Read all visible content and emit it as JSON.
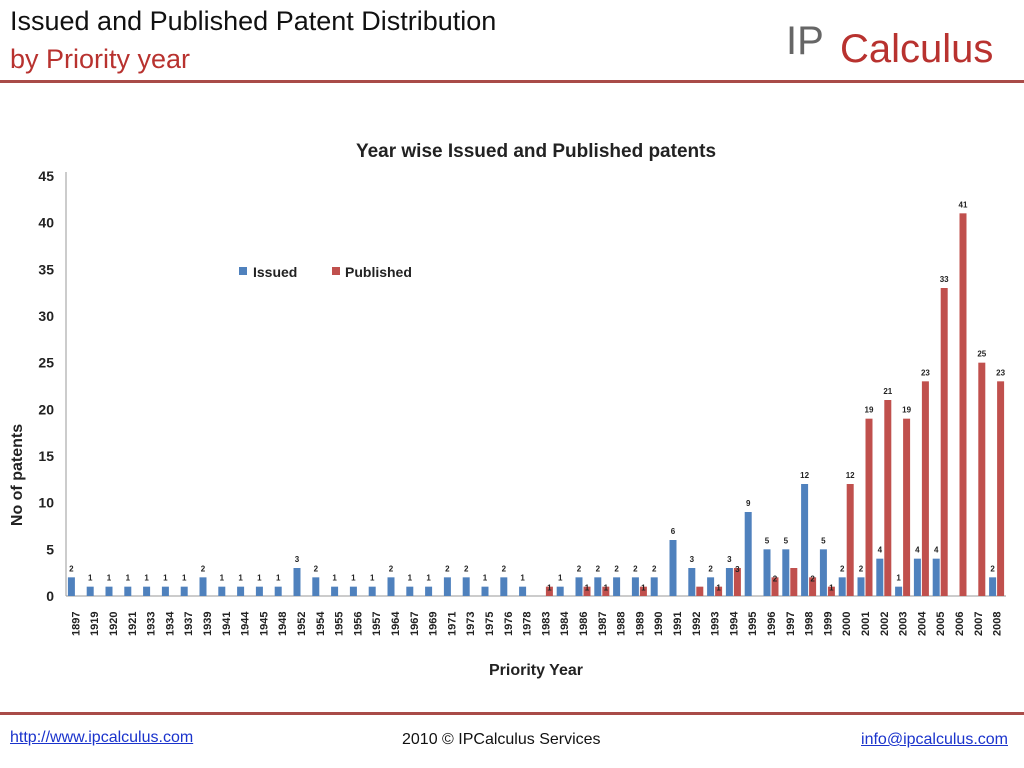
{
  "slide": {
    "title": "Issued and Published Patent Distribution",
    "subtitle": "by Priority year",
    "logo": {
      "prefix": "IP",
      "name": "Calculus"
    },
    "footer": {
      "left_link": "http://www.ipcalculus.com",
      "center": "2010 © IPCalculus Services",
      "right_link": "info@ipcalculus.com"
    }
  },
  "colors": {
    "accent": "#b8322f",
    "rule": "#a94b48",
    "issued": "#4f81bd",
    "published": "#c0504d",
    "link": "#1a33cc"
  },
  "chart_data": {
    "type": "bar",
    "title": "Year wise Issued and Published patents",
    "xlabel": "Priority Year",
    "ylabel": "No of patents",
    "ylim": [
      0,
      45
    ],
    "yticks": [
      0,
      5,
      10,
      15,
      20,
      25,
      30,
      35,
      40,
      45
    ],
    "grid": false,
    "legend_position": "top-left",
    "categories": [
      "1897",
      "1919",
      "1920",
      "1921",
      "1933",
      "1934",
      "1937",
      "1939",
      "1941",
      "1944",
      "1945",
      "1948",
      "1952",
      "1954",
      "1955",
      "1956",
      "1957",
      "1964",
      "1967",
      "1969",
      "1971",
      "1973",
      "1975",
      "1976",
      "1978",
      "1983",
      "1984",
      "1986",
      "1987",
      "1988",
      "1989",
      "1990",
      "1991",
      "1992",
      "1993",
      "1994",
      "1995",
      "1996",
      "1997",
      "1998",
      "1999",
      "2000",
      "2001",
      "2002",
      "2003",
      "2004",
      "2005",
      "2006",
      "2007",
      "2008"
    ],
    "series": [
      {
        "name": "Issued",
        "color": "#4f81bd",
        "values": [
          2,
          1,
          1,
          1,
          1,
          1,
          1,
          2,
          1,
          1,
          1,
          1,
          3,
          2,
          1,
          1,
          1,
          2,
          1,
          1,
          2,
          2,
          1,
          2,
          1,
          0,
          1,
          2,
          2,
          2,
          2,
          2,
          6,
          3,
          2,
          3,
          9,
          5,
          5,
          12,
          5,
          2,
          2,
          4,
          1,
          4,
          4,
          0,
          0,
          2
        ],
        "labels": [
          "2",
          "1",
          "1",
          "1",
          "1",
          "1",
          "1",
          "2",
          "1",
          "1",
          "1",
          "1",
          "3",
          "2",
          "1",
          "1",
          "1",
          "2",
          "1",
          "1",
          "2",
          "2",
          "1",
          "2",
          "1",
          "",
          "1",
          "2",
          "2",
          "2",
          "2",
          "2",
          "6",
          "3",
          "2",
          "3",
          "9",
          "5",
          "5",
          "12",
          "5",
          "2",
          "2",
          "4",
          "1",
          "4",
          "4",
          "",
          "",
          "2"
        ]
      },
      {
        "name": "Published",
        "color": "#c0504d",
        "values": [
          0,
          0,
          0,
          0,
          0,
          0,
          0,
          0,
          0,
          0,
          0,
          0,
          0,
          0,
          0,
          0,
          0,
          0,
          0,
          0,
          0,
          0,
          0,
          0,
          0,
          1,
          0,
          1,
          1,
          0,
          1,
          0,
          0,
          1,
          1,
          3,
          0,
          2,
          3,
          2,
          1,
          12,
          19,
          21,
          19,
          23,
          33,
          41,
          25,
          23
        ],
        "labels": [
          "",
          "",
          "",
          "",
          "",
          "",
          "",
          "",
          "",
          "",
          "",
          "",
          "",
          "",
          "",
          "",
          "",
          "",
          "",
          "",
          "",
          "",
          "",
          "",
          "",
          "1",
          "",
          "1",
          "1",
          "",
          "1",
          "",
          "",
          "",
          "1",
          "3",
          "",
          "2",
          "",
          "2",
          "1",
          "12",
          "19",
          "21",
          "19",
          "23",
          "33",
          "41",
          "25",
          "23"
        ]
      }
    ]
  }
}
